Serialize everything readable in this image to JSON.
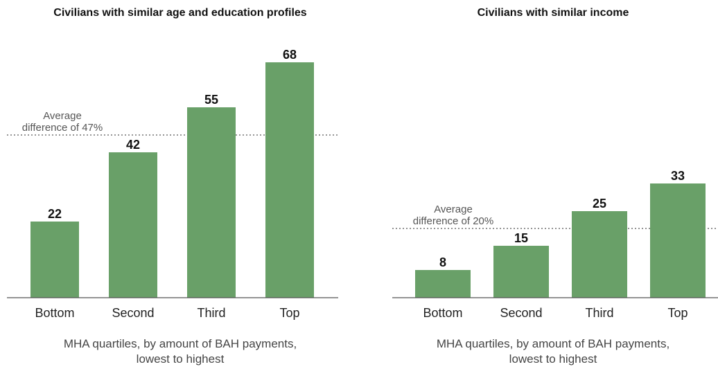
{
  "colors": {
    "bar": "#69a068",
    "axis": "#555555",
    "reference_line": "#555555",
    "value_label": "#111111",
    "tick_label": "#222222",
    "annotation": "#555555"
  },
  "chart_data": [
    {
      "type": "bar",
      "title": "Civilians with similar age and education profiles",
      "categories": [
        "Bottom",
        "Second",
        "Third",
        "Top"
      ],
      "values": [
        22,
        42,
        55,
        68
      ],
      "value_labels": [
        "22",
        "42",
        "55",
        "68"
      ],
      "xlabel_lines": [
        "MHA quartiles, by amount of BAH payments,",
        "lowest to highest"
      ],
      "ylabel": "",
      "ylim": [
        0,
        76
      ],
      "reference_line": {
        "value": 47,
        "style": "dotted",
        "label_lines": [
          "Average",
          "difference of 47%"
        ]
      },
      "grid": false,
      "legend": "none"
    },
    {
      "type": "bar",
      "title": "Civilians with similar income",
      "categories": [
        "Bottom",
        "Second",
        "Third",
        "Top"
      ],
      "values": [
        8,
        15,
        25,
        33
      ],
      "value_labels": [
        "8",
        "15",
        "25",
        "33"
      ],
      "xlabel_lines": [
        "MHA quartiles, by amount of BAH payments,",
        "lowest to highest"
      ],
      "ylabel": "",
      "ylim": [
        0,
        76
      ],
      "reference_line": {
        "value": 20,
        "style": "dotted",
        "label_lines": [
          "Average",
          "difference of 20%"
        ]
      },
      "grid": false,
      "legend": "none"
    }
  ]
}
